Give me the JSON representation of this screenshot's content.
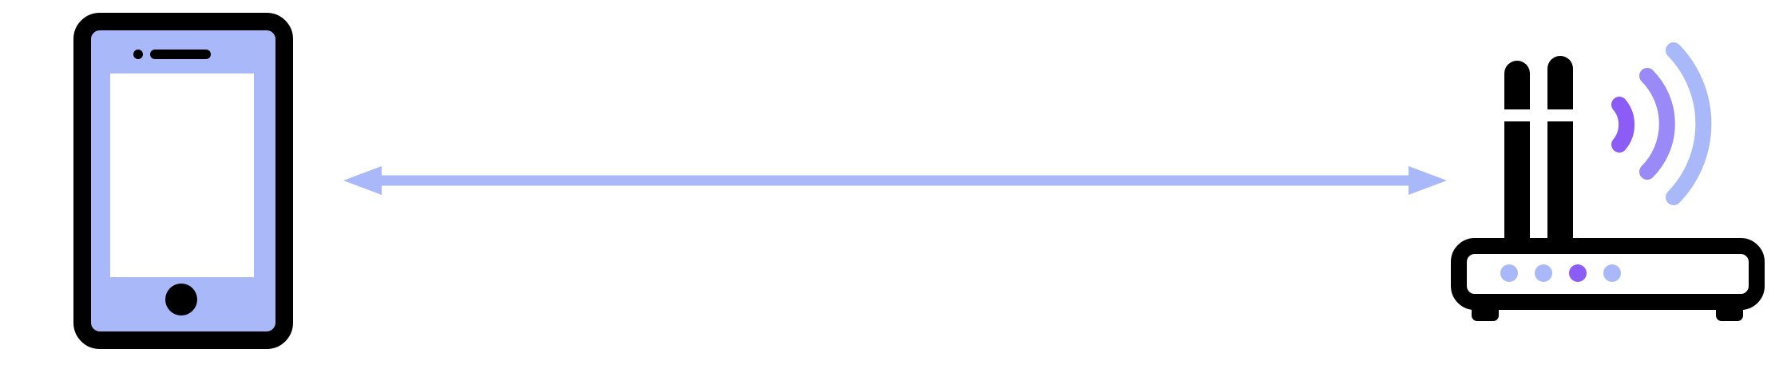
{
  "diagram": {
    "nodes": [
      {
        "id": "phone",
        "icon": "smartphone-icon"
      },
      {
        "id": "router",
        "icon": "wifi-router-icon"
      }
    ],
    "edges": [
      {
        "from": "phone",
        "to": "router",
        "direction": "bidirectional"
      }
    ]
  },
  "colors": {
    "outline": "#000000",
    "phone_body": "#a9b8f8",
    "screen": "#ffffff",
    "arrow": "#a9b8f8",
    "signal_inner": "#8b5cf6",
    "signal_middle": "#9a8af7",
    "signal_outer": "#a9b8f8",
    "led_active": "#8b5cf6",
    "led_idle": "#a9b8f8"
  }
}
